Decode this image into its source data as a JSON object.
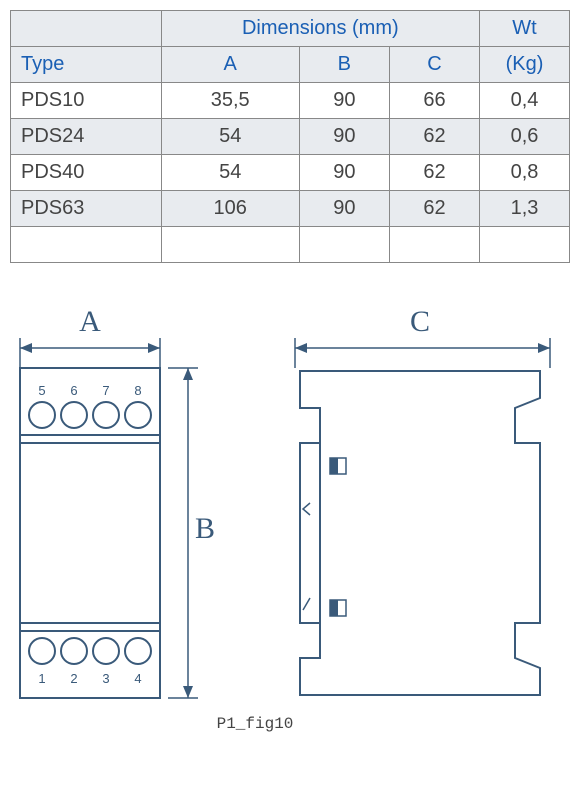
{
  "table": {
    "header_dim": "Dimensions (mm)",
    "header_wt": "Wt",
    "col_type": "Type",
    "col_a": "A",
    "col_b": "B",
    "col_c": "C",
    "col_wt": "(Kg)",
    "rows": [
      {
        "type": "PDS10",
        "a": "35,5",
        "b": "90",
        "c": "66",
        "wt": "0,4"
      },
      {
        "type": "PDS24",
        "a": "54",
        "b": "90",
        "c": "62",
        "wt": "0,6"
      },
      {
        "type": "PDS40",
        "a": "54",
        "b": "90",
        "c": "62",
        "wt": "0,8"
      },
      {
        "type": "PDS63",
        "a": "106",
        "b": "90",
        "c": "62",
        "wt": "1,3"
      }
    ],
    "colors": {
      "header_text": "#1a5fb4",
      "body_text": "#444",
      "row_even_bg": "#e8ebef",
      "row_odd_bg": "#ffffff",
      "border": "#888"
    }
  },
  "diagram": {
    "label_a": "A",
    "label_b": "B",
    "label_c": "C",
    "caption": "P1_fig10",
    "front": {
      "terminals_top": [
        "5",
        "6",
        "7",
        "8"
      ],
      "terminals_bottom": [
        "1",
        "2",
        "3",
        "4"
      ]
    },
    "colors": {
      "stroke": "#3a5a7a",
      "label": "#3a5a7a",
      "background": "#ffffff"
    }
  }
}
